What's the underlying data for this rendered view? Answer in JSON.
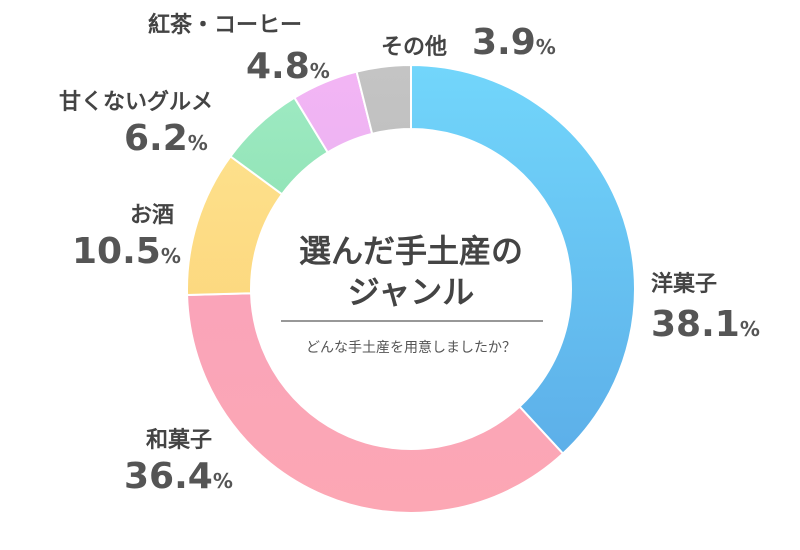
{
  "chart_data": {
    "type": "pie",
    "title_line1": "選んだ手土産の",
    "title_line2": "ジャンル",
    "subtitle": "どんな手土産を用意しましたか？",
    "unit": "%",
    "series": [
      {
        "label": "洋菓子",
        "value": 38.1,
        "value_text": "38.1",
        "color_light": "#72d6fb",
        "color_dark": "#59a9e6"
      },
      {
        "label": "和菓子",
        "value": 36.4,
        "value_text": "36.4",
        "color_light": "#f7a1bf",
        "color_dark": "#fca7b4"
      },
      {
        "label": "お酒",
        "value": 10.5,
        "value_text": "10.5",
        "color_light": "#fee592",
        "color_dark": "#fbcd6f"
      },
      {
        "label": "甘くないグルメ",
        "value": 6.2,
        "value_text": "6.2",
        "color_light": "#a0ebc5",
        "color_dark": "#74d598"
      },
      {
        "label": "紅茶・コーヒー",
        "value": 4.8,
        "value_text": "4.8",
        "color_light": "#f3b5f4",
        "color_dark": "#d9b0ee"
      },
      {
        "label": "その他",
        "value": 3.9,
        "value_text": "3.9",
        "color_light": "#c4c4c4",
        "color_dark": "#b0b0b0"
      }
    ]
  }
}
